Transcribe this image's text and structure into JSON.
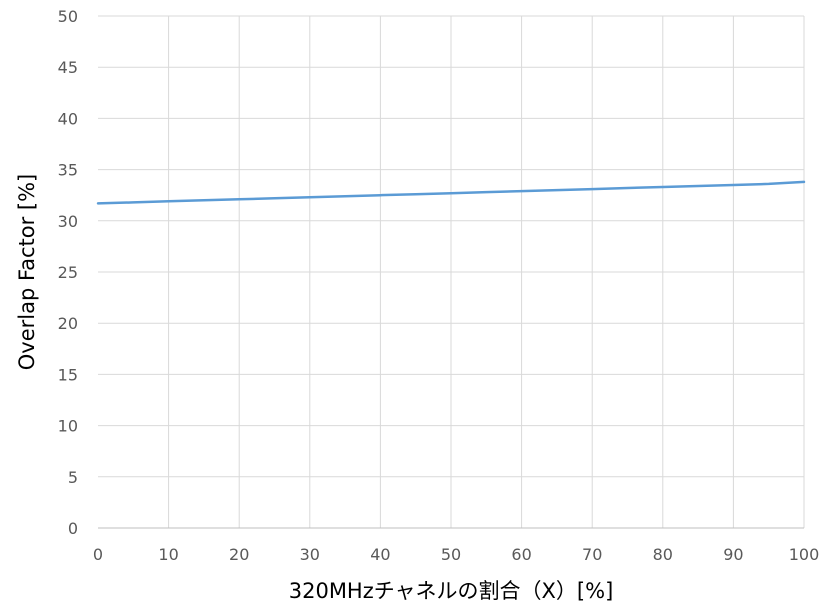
{
  "chart_data": {
    "type": "line",
    "title": "",
    "xlabel": "320MHzチャネルの割合（X）[%]",
    "ylabel": "Overlap Factor [%]",
    "xlim": [
      0,
      100
    ],
    "ylim": [
      0,
      50
    ],
    "xticks": [
      0,
      10,
      20,
      30,
      40,
      50,
      60,
      70,
      80,
      90,
      100
    ],
    "yticks": [
      0,
      5,
      10,
      15,
      20,
      25,
      30,
      35,
      40,
      45,
      50
    ],
    "grid": true,
    "legend": "none",
    "series": [
      {
        "color": "#5b9bd5",
        "x": [
          0,
          5,
          10,
          15,
          20,
          25,
          30,
          35,
          40,
          45,
          50,
          55,
          60,
          65,
          70,
          75,
          80,
          85,
          90,
          95,
          100
        ],
        "y": [
          31.7,
          31.8,
          31.9,
          32.0,
          32.1,
          32.2,
          32.3,
          32.4,
          32.5,
          32.6,
          32.7,
          32.8,
          32.9,
          33.0,
          33.1,
          33.2,
          33.3,
          33.4,
          33.5,
          33.6,
          33.8
        ]
      }
    ]
  }
}
